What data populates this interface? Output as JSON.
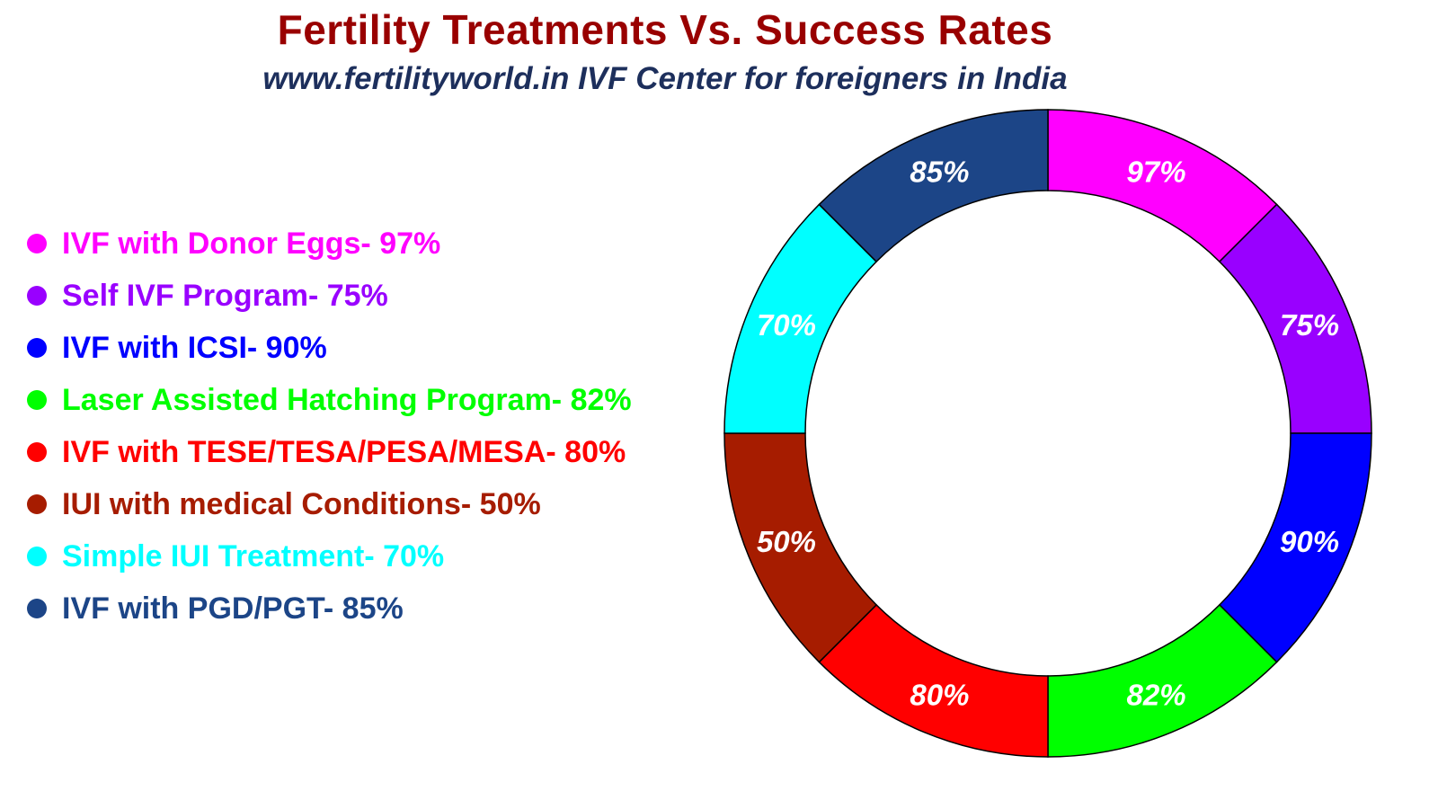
{
  "chart_data": {
    "type": "pie",
    "subtype": "donut",
    "title": "Fertility Treatments Vs. Success Rates",
    "subtitle": "www.fertilityworld.in IVF Center for foreigners in India",
    "legend_position": "left",
    "series": [
      {
        "name": "IVF with Donor Eggs",
        "legend_text": "IVF with Donor Eggs- 97%",
        "value": 97,
        "label": "97%",
        "color": "#ff00ff",
        "label_color": "#ffffff"
      },
      {
        "name": "Self IVF Program",
        "legend_text": "Self IVF Program- 75%",
        "value": 75,
        "label": "75%",
        "color": "#9900ff",
        "label_color": "#ffffff"
      },
      {
        "name": "IVF with ICSI",
        "legend_text": "IVF with ICSI- 90%",
        "value": 90,
        "label": "90%",
        "color": "#0000ff",
        "label_color": "#ffffff"
      },
      {
        "name": "Laser Assisted Hatching Program",
        "legend_text": "Laser Assisted Hatching Program- 82%",
        "value": 82,
        "label": "82%",
        "color": "#00ff00",
        "label_color": "#ffffff"
      },
      {
        "name": "IVF with TESE/TESA/PESA/MESA",
        "legend_text": "IVF with TESE/TESA/PESA/MESA- 80%",
        "value": 80,
        "label": "80%",
        "color": "#ff0000",
        "label_color": "#ffffff"
      },
      {
        "name": "IUI with medical Conditions",
        "legend_text": "IUI with medical Conditions- 50%",
        "value": 50,
        "label": "50%",
        "color": "#a61c00",
        "label_color": "#ffffff"
      },
      {
        "name": "Simple IUI Treatment",
        "legend_text": "Simple IUI Treatment- 70%",
        "value": 70,
        "label": "70%",
        "color": "#00ffff",
        "label_color": "#1d2f5c"
      },
      {
        "name": "IVF with PGD/PGT",
        "legend_text": "IVF with PGD/PGT- 85%",
        "value": 85,
        "label": "85%",
        "color": "#1c4587",
        "label_color": "#ffffff"
      }
    ]
  }
}
